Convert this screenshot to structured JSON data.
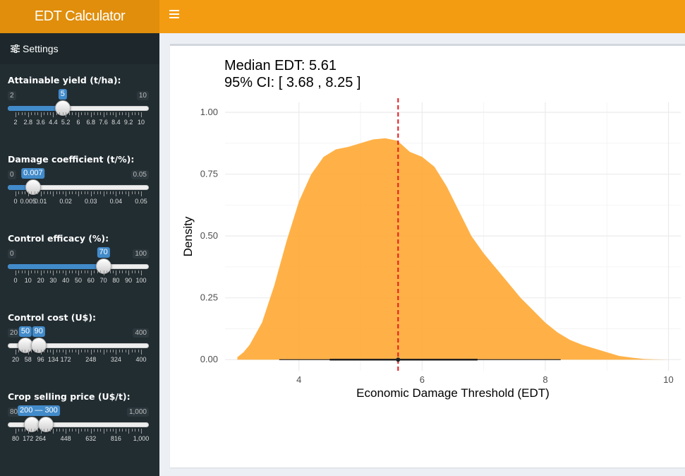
{
  "header": {
    "title": "EDT Calculator"
  },
  "sidebar": {
    "menu_label": "Settings"
  },
  "sliders": [
    {
      "label": "Attainable yield (t/ha):",
      "min_label": "2",
      "max_label": "10",
      "min": 2,
      "max": 10,
      "values": [
        5
      ],
      "bubbles": [
        "5"
      ],
      "ticks": [
        2,
        2.8,
        3.6,
        4.4,
        5.2,
        6,
        6.8,
        7.6,
        8.4,
        9.2,
        10
      ],
      "tick_labels": [
        "2",
        "2.8",
        "3.6",
        "4.4",
        "5.2",
        "6",
        "6.8",
        "7.6",
        "8.4",
        "9.2",
        "10"
      ]
    },
    {
      "label": "Damage coefficient (t/%):",
      "min_label": "0",
      "max_label": "0.05",
      "min": 0,
      "max": 0.05,
      "values": [
        0.007
      ],
      "bubbles": [
        "0.007"
      ],
      "ticks": [
        0,
        0.005,
        0.01,
        0.02,
        0.03,
        0.04,
        0.05
      ],
      "tick_labels": [
        "0",
        "0.005",
        "0.01",
        "0.02",
        "0.03",
        "0.04",
        "0.05"
      ]
    },
    {
      "label": "Control efficacy (%):",
      "min_label": "0",
      "max_label": "100",
      "min": 0,
      "max": 100,
      "values": [
        70
      ],
      "bubbles": [
        "70"
      ],
      "ticks": [
        0,
        10,
        20,
        30,
        40,
        50,
        60,
        70,
        80,
        90,
        100
      ],
      "tick_labels": [
        "0",
        "10",
        "20",
        "30",
        "40",
        "50",
        "60",
        "70",
        "80",
        "90",
        "100"
      ]
    },
    {
      "label": "Control cost (U$):",
      "min_label": "20",
      "max_label": "400",
      "min": 20,
      "max": 400,
      "values": [
        50,
        90
      ],
      "bubbles": [
        "50",
        "90"
      ],
      "ticks": [
        20,
        58,
        96,
        134,
        172,
        248,
        324,
        400
      ],
      "tick_labels": [
        "20",
        "58",
        "96",
        "134",
        "172",
        "248",
        "324",
        "400"
      ]
    },
    {
      "label": "Crop selling price (U$/t):",
      "min_label": "80",
      "max_label": "1,000",
      "min": 80,
      "max": 1000,
      "values": [
        200,
        300
      ],
      "bubbles": [
        "200 — 300"
      ],
      "ticks": [
        80,
        172,
        264,
        448,
        632,
        816,
        1000
      ],
      "tick_labels": [
        "80",
        "172",
        "264",
        "448",
        "632",
        "816",
        "1,000"
      ]
    }
  ],
  "chart_data": {
    "type": "area",
    "title_line1": "Median EDT: 5.61",
    "title_line2": "95% CI: [ 3.68 ,  8.25 ]",
    "xlabel": "Economic Damage Threshold (EDT)",
    "ylabel": "Density",
    "xlim": [
      2.8,
      10.2
    ],
    "ylim": [
      -0.045,
      1.04
    ],
    "x_ticks": [
      4,
      6,
      8,
      10
    ],
    "x_tick_labels": [
      "4",
      "6",
      "8",
      "10"
    ],
    "y_ticks": [
      0,
      0.25,
      0.5,
      0.75,
      1.0
    ],
    "y_tick_labels": [
      "0.00",
      "0.25",
      "0.50",
      "0.75",
      "1.00"
    ],
    "grid": true,
    "fill_color": "#ffa833",
    "median": 5.61,
    "median_line_color": "#e41a1c",
    "ci": [
      3.68,
      8.25
    ],
    "iqr": [
      4.5,
      6.9
    ],
    "density_x": [
      3.0,
      3.1,
      3.2,
      3.4,
      3.6,
      3.8,
      4.0,
      4.2,
      4.4,
      4.6,
      4.8,
      5.0,
      5.2,
      5.4,
      5.6,
      5.8,
      6.0,
      6.2,
      6.4,
      6.6,
      6.8,
      7.0,
      7.2,
      7.4,
      7.6,
      7.8,
      8.0,
      8.2,
      8.4,
      8.6,
      8.8,
      9.0,
      9.2,
      9.4,
      9.6,
      9.8,
      10.0
    ],
    "density_y": [
      0.01,
      0.03,
      0.06,
      0.15,
      0.3,
      0.48,
      0.64,
      0.75,
      0.82,
      0.85,
      0.86,
      0.875,
      0.89,
      0.895,
      0.885,
      0.84,
      0.82,
      0.78,
      0.7,
      0.6,
      0.5,
      0.43,
      0.37,
      0.31,
      0.25,
      0.2,
      0.15,
      0.11,
      0.08,
      0.06,
      0.045,
      0.03,
      0.015,
      0.008,
      0.003,
      0.001,
      0.0
    ]
  }
}
